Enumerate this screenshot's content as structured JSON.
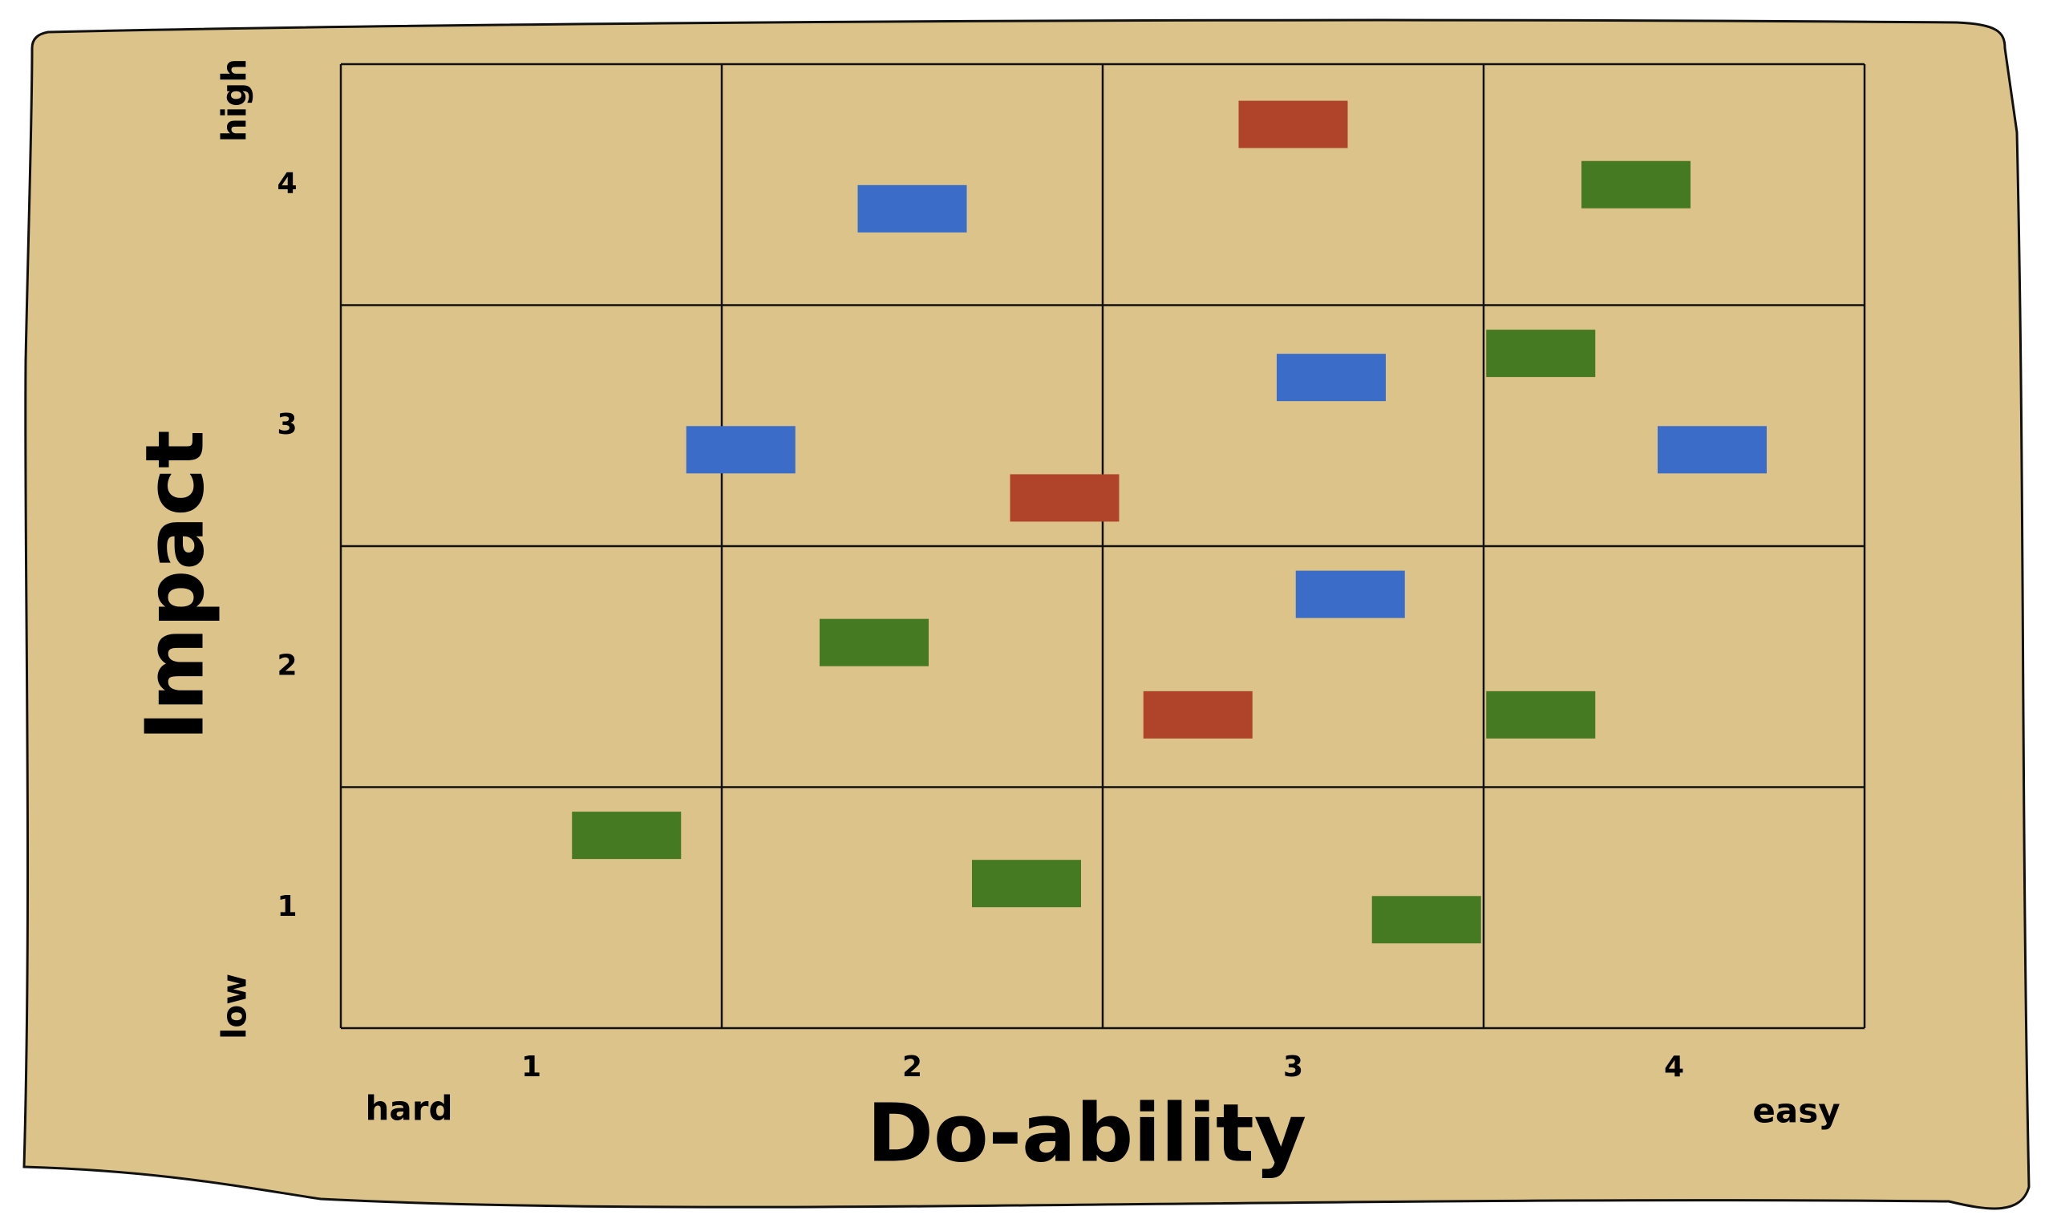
{
  "chart_data": {
    "type": "scatter",
    "x_label": "Do-ability",
    "y_label": "Impact",
    "annotations": {
      "high": "high",
      "low": "low",
      "hard": "hard",
      "easy": "easy"
    },
    "xlim": [
      0.5,
      4.5
    ],
    "ylim": [
      0.5,
      4.5
    ],
    "xticks": [
      1,
      2,
      3,
      4
    ],
    "yticks": [
      1,
      2,
      3,
      4
    ],
    "grid": true,
    "series": [
      {
        "color": "#b0442a",
        "x": [
          3.0,
          2.4,
          2.75
        ],
        "values": [
          4.25,
          2.7,
          1.8
        ]
      },
      {
        "color": "#3a6cc8",
        "x": [
          2.0,
          1.55,
          3.1,
          4.1,
          3.15
        ],
        "values": [
          3.9,
          2.9,
          3.2,
          2.9,
          2.3
        ]
      },
      {
        "color": "#467a22",
        "x": [
          3.9,
          3.65,
          1.9,
          3.65,
          1.25,
          2.3,
          3.35
        ],
        "values": [
          4.0,
          3.3,
          2.1,
          1.8,
          1.3,
          1.1,
          0.95
        ]
      }
    ]
  }
}
